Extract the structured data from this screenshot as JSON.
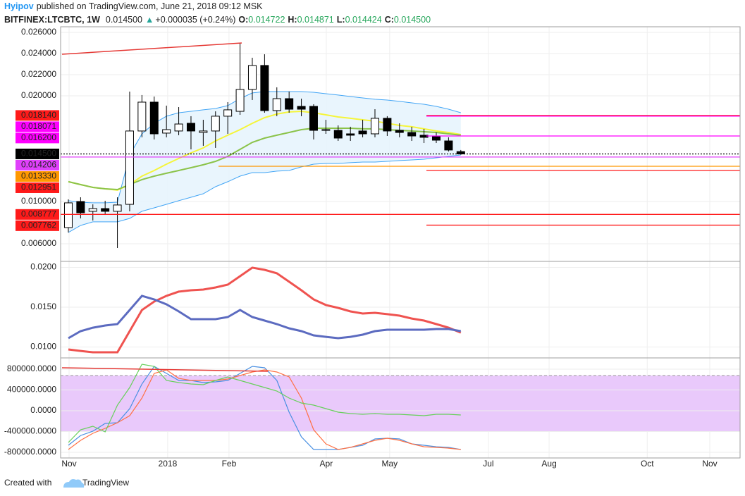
{
  "header": {
    "author": "Hyipov",
    "published": "published on TradingView.com, June 21, 2018 09:12 MSK",
    "symbol": "BITFINEX:LTCBTC, 1W",
    "last": "0.014500",
    "change": "+0.000035 (+0.24%)",
    "ohlc": [
      {
        "label": "O:",
        "value": "0.014722"
      },
      {
        "label": "H:",
        "value": "0.014871"
      },
      {
        "label": "L:",
        "value": "0.014424"
      },
      {
        "label": "C:",
        "value": "0.014500"
      }
    ]
  },
  "footer": {
    "text": "Created with",
    "brand": "TradingView"
  },
  "chart_data": [
    {
      "type": "candlestick",
      "ylim": [
        0.0044,
        0.02653
      ],
      "yticks": [
        {
          "value": 0.026,
          "label": "0.026000"
        },
        {
          "value": 0.024,
          "label": "0.024000"
        },
        {
          "value": 0.022,
          "label": "0.022000"
        },
        {
          "value": 0.02,
          "label": "0.020000"
        },
        {
          "value": 0.01,
          "label": "0.010000"
        },
        {
          "value": 0.006,
          "label": "0.006000"
        }
      ],
      "grid": true,
      "up_color": "#ffffff",
      "down_color": "#000000",
      "band_color": "#e3f2fd",
      "open": [
        0.00753,
        0.01,
        0.00907,
        0.00933,
        0.00907,
        0.00973,
        0.01667,
        0.0194,
        0.01647,
        0.01667,
        0.0174,
        0.01653,
        0.01667,
        0.01807,
        0.01853,
        0.0206,
        0.02287,
        0.0186,
        0.01973,
        0.019,
        0.019,
        0.0168,
        0.01673,
        0.0164,
        0.01667,
        0.0164,
        0.01787,
        0.01673,
        0.01653,
        0.01627,
        0.0162,
        0.01573,
        0.014722
      ],
      "high": [
        0.0102,
        0.0104,
        0.00973,
        0.01007,
        0.0104,
        0.0204,
        0.02007,
        0.01993,
        0.01907,
        0.01893,
        0.01807,
        0.01773,
        0.01853,
        0.0194,
        0.025,
        0.0236,
        0.02393,
        0.0208,
        0.0204,
        0.01973,
        0.0192,
        0.01773,
        0.0172,
        0.01707,
        0.01773,
        0.01873,
        0.01807,
        0.0174,
        0.01707,
        0.01687,
        0.01653,
        0.01607,
        0.014871
      ],
      "low": [
        0.00707,
        0.0084,
        0.0082,
        0.00873,
        0.0056,
        0.00907,
        0.01607,
        0.01587,
        0.01607,
        0.01627,
        0.01493,
        0.01527,
        0.01507,
        0.0164,
        0.0182,
        0.0196,
        0.0184,
        0.01807,
        0.0184,
        0.01807,
        0.01587,
        0.0164,
        0.01573,
        0.01573,
        0.01607,
        0.01607,
        0.0162,
        0.01607,
        0.01573,
        0.01553,
        0.01553,
        0.01473,
        0.014424
      ],
      "close": [
        0.00987,
        0.00893,
        0.00933,
        0.00907,
        0.00967,
        0.01667,
        0.0194,
        0.0164,
        0.0168,
        0.01733,
        0.01667,
        0.01667,
        0.01807,
        0.01867,
        0.0206,
        0.02287,
        0.0186,
        0.01973,
        0.01873,
        0.01873,
        0.01673,
        0.01673,
        0.016,
        0.01627,
        0.0164,
        0.01787,
        0.01667,
        0.01653,
        0.0162,
        0.01607,
        0.0158,
        0.01487,
        0.0145
      ],
      "bands": [
        {
          "color": "#42a5f5",
          "values": [
            0.01007,
            0.00993,
            0.00987,
            0.00987,
            0.00993,
            0.0144,
            0.0164,
            0.0174,
            0.01807,
            0.0184,
            0.01853,
            0.01867,
            0.0188,
            0.01907,
            0.01973,
            0.02027,
            0.0204,
            0.0204,
            0.0204,
            0.0204,
            0.02033,
            0.0202,
            0.02007,
            0.01993,
            0.0198,
            0.01967,
            0.0196,
            0.01947,
            0.01933,
            0.0192,
            0.019,
            0.01873,
            0.0184
          ]
        },
        {
          "color": "#42a5f5",
          "values": [
            0.00707,
            0.00773,
            0.00807,
            0.00807,
            0.00807,
            0.0084,
            0.00907,
            0.0094,
            0.00973,
            0.01007,
            0.0104,
            0.01073,
            0.0114,
            0.01187,
            0.0124,
            0.01273,
            0.01273,
            0.01287,
            0.01293,
            0.01327,
            0.01353,
            0.0136,
            0.0136,
            0.01367,
            0.01373,
            0.01373,
            0.0138,
            0.01387,
            0.01393,
            0.014,
            0.01413,
            0.01427,
            0.0144
          ]
        }
      ],
      "series": [
        {
          "color": "#f5f53a",
          "values": [
            0.01187,
            0.0116,
            0.01133,
            0.0112,
            0.01107,
            0.0116,
            0.0124,
            0.01293,
            0.01353,
            0.01407,
            0.0146,
            0.01507,
            0.01573,
            0.01627,
            0.0168,
            0.0174,
            0.01793,
            0.01827,
            0.01847,
            0.01853,
            0.0184,
            0.0182,
            0.018,
            0.01787,
            0.01773,
            0.0176,
            0.0174,
            0.0172,
            0.01707,
            0.01687,
            0.01667,
            0.01653,
            0.01633
          ]
        },
        {
          "color": "#8bc34a",
          "values": [
            0.01187,
            0.0116,
            0.01133,
            0.0112,
            0.01113,
            0.0116,
            0.01207,
            0.0124,
            0.01267,
            0.01293,
            0.0132,
            0.01347,
            0.0138,
            0.01427,
            0.01493,
            0.0156,
            0.016,
            0.01627,
            0.01653,
            0.0168,
            0.01693,
            0.01693,
            0.01693,
            0.01693,
            0.01687,
            0.01687,
            0.0168,
            0.01673,
            0.01667,
            0.0166,
            0.01653,
            0.0164,
            0.01627
          ]
        }
      ],
      "price_lines": [
        {
          "value": 0.01814,
          "label": "0.018140",
          "color": "#ff1a1a"
        },
        {
          "value": 0.018071,
          "label": "0.018071",
          "color": "#ff00ff"
        },
        {
          "value": 0.0162,
          "label": "0.016200",
          "color": "#ff00ff"
        },
        {
          "value": 0.0145,
          "label": "0.014500",
          "color": "#000000"
        },
        {
          "value": 0.014206,
          "label": "0.014206",
          "color": "#e040fb"
        },
        {
          "value": 0.01333,
          "label": "0.013330",
          "color": "#ff9800"
        },
        {
          "value": 0.012951,
          "label": "0.012951",
          "color": "#ff1a1a"
        },
        {
          "value": 0.008777,
          "label": "0.008777",
          "color": "#ff1a1a"
        },
        {
          "value": 0.007762,
          "label": "0.007762",
          "color": "#ff1a1a"
        }
      ]
    },
    {
      "type": "line",
      "ylim": [
        0.00872,
        0.02066
      ],
      "yticks": [
        {
          "value": 0.02,
          "label": "0.0200"
        },
        {
          "value": 0.015,
          "label": "0.0150"
        },
        {
          "value": 0.01,
          "label": "0.0100"
        }
      ],
      "grid": true,
      "series": [
        {
          "color": "#ef5350",
          "values": [
            0.00969,
            0.00951,
            0.00934,
            0.00934,
            0.00934,
            0.01199,
            0.01465,
            0.01571,
            0.01642,
            0.01695,
            0.01712,
            0.01721,
            0.01748,
            0.01783,
            0.01889,
            0.01996,
            0.01969,
            0.01925,
            0.01819,
            0.01712,
            0.01597,
            0.01527,
            0.01491,
            0.01447,
            0.0142,
            0.01429,
            0.01412,
            0.01394,
            0.01358,
            0.01332,
            0.01288,
            0.01243,
            0.01181
          ]
        },
        {
          "color": "#5c6bc0",
          "values": [
            0.01111,
            0.01199,
            0.01243,
            0.0127,
            0.01288,
            0.01465,
            0.01642,
            0.01597,
            0.01535,
            0.01447,
            0.0135,
            0.0135,
            0.0135,
            0.01376,
            0.01465,
            0.01376,
            0.01332,
            0.01288,
            0.01235,
            0.01199,
            0.01146,
            0.01128,
            0.01111,
            0.01128,
            0.01155,
            0.01199,
            0.01217,
            0.01217,
            0.01217,
            0.01217,
            0.01226,
            0.01226,
            0.01199
          ]
        }
      ]
    },
    {
      "type": "line",
      "ylim": [
        -908000,
        1003000
      ],
      "yticks": [
        {
          "value": 800000,
          "label": "800000.0000"
        },
        {
          "value": 400000,
          "label": "400000.0000"
        },
        {
          "value": 0,
          "label": "0.0000"
        },
        {
          "value": -400000,
          "label": "-400000.0000"
        },
        {
          "value": -800000,
          "label": "-800000.0000"
        }
      ],
      "grid": true,
      "band": [
        -400000,
        678000
      ],
      "band_color": "#e9c9fb",
      "xlim": [
        -0.63,
        54.77
      ],
      "xticks": [
        {
          "value": 0.06,
          "label": "Nov"
        },
        {
          "value": 8.1,
          "label": "2018"
        },
        {
          "value": 13.1,
          "label": "Feb"
        },
        {
          "value": 21.03,
          "label": "Apr"
        },
        {
          "value": 26.2,
          "label": "May"
        },
        {
          "value": 34.25,
          "label": "Jul"
        },
        {
          "value": 39.2,
          "label": "Aug"
        },
        {
          "value": 47.2,
          "label": "Oct"
        },
        {
          "value": 52.3,
          "label": "Nov"
        }
      ],
      "series": [
        {
          "color": "#4a90e2",
          "values": [
            -664000,
            -475000,
            -393000,
            -244000,
            -231000,
            41000,
            515000,
            854000,
            719000,
            583000,
            583000,
            542000,
            556000,
            583000,
            719000,
            854000,
            827000,
            583000,
            -27000,
            -502000,
            -746000,
            -746000,
            -746000,
            -705000,
            -664000,
            -542000,
            -529000,
            -542000,
            -637000,
            -664000,
            -692000,
            -705000,
            -746000
          ]
        },
        {
          "color": "#ff7043",
          "values": [
            -746000,
            -569000,
            -434000,
            -339000,
            -231000,
            -95000,
            244000,
            719000,
            786000,
            624000,
            583000,
            583000,
            583000,
            610000,
            678000,
            746000,
            786000,
            746000,
            651000,
            244000,
            -366000,
            -637000,
            -746000,
            -705000,
            -637000,
            -569000,
            -529000,
            -569000,
            -637000,
            -692000,
            -705000,
            -719000,
            -746000
          ]
        },
        {
          "color": "#66d05a",
          "values": [
            -610000,
            -366000,
            -298000,
            -407000,
            108000,
            447000,
            895000,
            854000,
            583000,
            542000,
            515000,
            502000,
            583000,
            651000,
            583000,
            515000,
            447000,
            380000,
            244000,
            149000,
            108000,
            41000,
            -27000,
            -54000,
            -68000,
            -54000,
            -68000,
            -68000,
            -81000,
            -95000,
            -68000,
            -68000,
            -81000
          ]
        }
      ]
    }
  ]
}
